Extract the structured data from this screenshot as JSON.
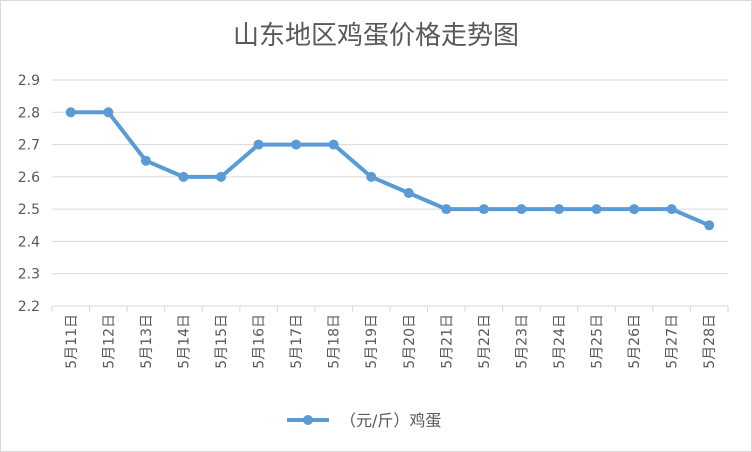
{
  "chart_data": {
    "type": "line",
    "title": "山东地区鸡蛋价格走势图",
    "categories": [
      "5月11日",
      "5月12日",
      "5月13日",
      "5月14日",
      "5月15日",
      "5月16日",
      "5月17日",
      "5月18日",
      "5月19日",
      "5月20日",
      "5月21日",
      "5月22日",
      "5月23日",
      "5月24日",
      "5月25日",
      "5月26日",
      "5月27日",
      "5月28日"
    ],
    "series": [
      {
        "name": "（元/斤）鸡蛋",
        "values": [
          2.8,
          2.8,
          2.65,
          2.6,
          2.6,
          2.7,
          2.7,
          2.7,
          2.6,
          2.55,
          2.5,
          2.5,
          2.5,
          2.5,
          2.5,
          2.5,
          2.5,
          2.45
        ]
      }
    ],
    "yticks": [
      "2.2",
      "2.3",
      "2.4",
      "2.5",
      "2.6",
      "2.7",
      "2.8",
      "2.9"
    ],
    "ylim": [
      2.2,
      2.9
    ],
    "grid": true,
    "legend_position": "bottom",
    "colors": {
      "line": "#5b9bd5",
      "grid": "#d9d9d9",
      "text": "#595959"
    }
  }
}
